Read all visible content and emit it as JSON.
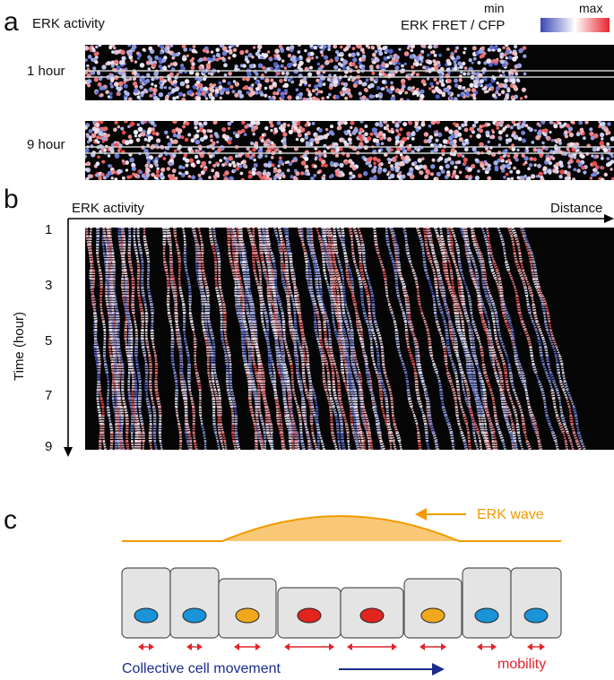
{
  "panel_a": {
    "letter": "a",
    "title": "ERK activity",
    "colorbar": {
      "label": "ERK FRET / CFP",
      "min": "min",
      "max": "max",
      "low_color": "#3a47b5",
      "mid_color": "#ffffff",
      "high_color": "#e8242f"
    },
    "rows": [
      {
        "label": "1 hour"
      },
      {
        "label": "9 hour"
      }
    ]
  },
  "panel_b": {
    "letter": "b",
    "title": "ERK activity",
    "x_axis_label": "Distance",
    "y_axis_label": "Time (hour)",
    "y_ticks": [
      "1",
      "3",
      "5",
      "7",
      "9"
    ]
  },
  "panel_c": {
    "letter": "c",
    "wave_label": "ERK wave",
    "movement_label": "Collective cell movement",
    "mobility_label": "mobility",
    "colors": {
      "wave": "#f29a00",
      "wave_fill": "#f8c877",
      "cell_fill": "#e4e4e4",
      "nucleus_low": "#1a93d8",
      "nucleus_mid": "#f2a81d",
      "nucleus_high": "#e2241f",
      "arrow_red": "#e0242b",
      "arrow_navy": "#1a2d8c"
    },
    "cells": [
      {
        "erk": "low"
      },
      {
        "erk": "low"
      },
      {
        "erk": "mid"
      },
      {
        "erk": "high"
      },
      {
        "erk": "high"
      },
      {
        "erk": "mid"
      },
      {
        "erk": "low"
      },
      {
        "erk": "low"
      }
    ]
  }
}
